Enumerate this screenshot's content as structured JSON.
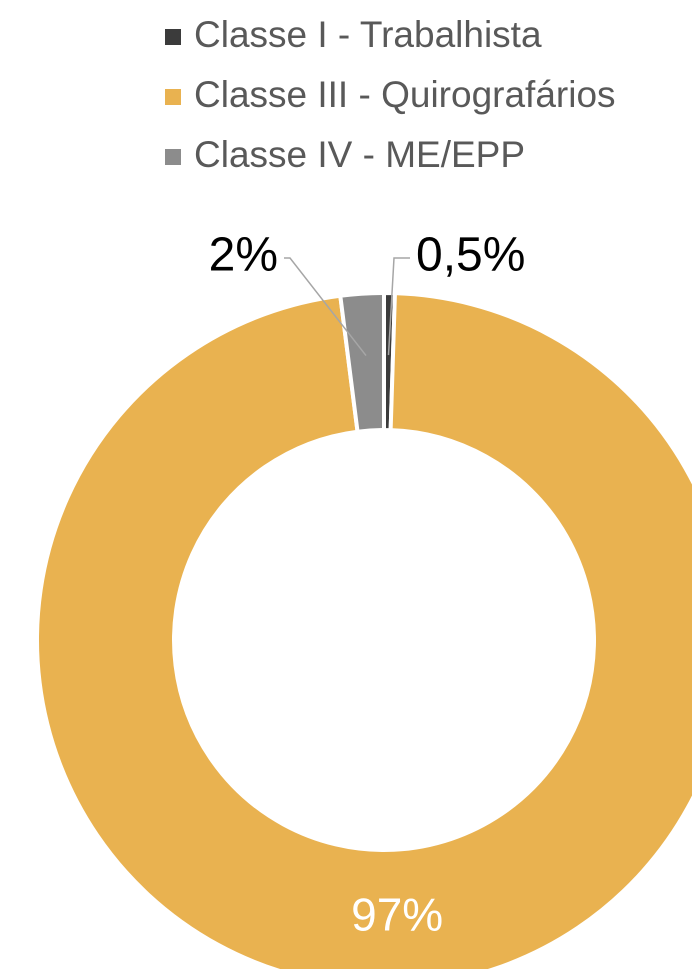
{
  "chart_data": {
    "type": "donut",
    "categories": [
      "Classe I - Trabalhista",
      "Classe III - Quirografários",
      "Classe IV - ME/EPP"
    ],
    "values": [
      0.5,
      97,
      2
    ],
    "value_labels": [
      "0,5%",
      "97%",
      "2%"
    ],
    "colors": [
      "#3b3b3b",
      "#e9b250",
      "#8c8c8c"
    ],
    "legend": "top"
  }
}
